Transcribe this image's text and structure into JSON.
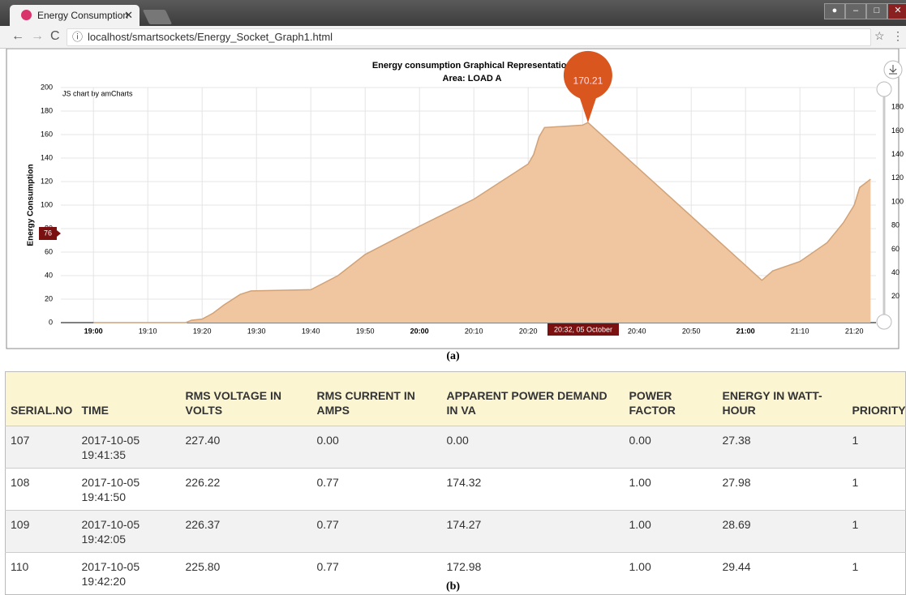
{
  "browser": {
    "tab_title": "Energy Consumption",
    "url": "localhost/smartsockets/Energy_Socket_Graph1.html"
  },
  "chart_data": {
    "type": "area",
    "title": "Energy consumption Graphical Representation",
    "subtitle": "Area: LOAD A",
    "y_label": "Energy Consumption",
    "credit": "JS chart by amCharts",
    "x": [
      "19:00",
      "19:17",
      "19:18",
      "19:20",
      "19:22",
      "19:24",
      "19:27",
      "19:29",
      "19:40",
      "19:45",
      "19:50",
      "20:00",
      "20:10",
      "20:20",
      "20:21",
      "20:22",
      "20:23",
      "20:30",
      "20:31",
      "21:03",
      "21:05",
      "21:10",
      "21:15",
      "21:18",
      "21:20",
      "21:21",
      "21:23"
    ],
    "values": [
      0,
      0,
      2,
      3,
      8,
      15,
      24,
      27,
      28,
      40,
      58,
      82,
      105,
      135,
      143,
      158,
      166,
      168,
      170.21,
      36,
      44,
      52,
      68,
      85,
      100,
      115,
      122
    ],
    "color": "#efc6a0",
    "line_color": "#d1a277",
    "xlim": [
      "18:54",
      "21:24"
    ],
    "xticks": [
      "19:00",
      "19:10",
      "19:20",
      "19:30",
      "19:40",
      "19:50",
      "20:00",
      "20:10",
      "20:20",
      "20:30",
      "20:40",
      "20:50",
      "21:00",
      "21:10",
      "21:20"
    ],
    "ylim": [
      0,
      200
    ],
    "yticks": [
      0,
      20,
      40,
      60,
      80,
      100,
      120,
      140,
      160,
      180,
      200
    ],
    "y2lim": [
      0,
      200
    ],
    "y2ticks": [
      20,
      40,
      60,
      80,
      100,
      120,
      140,
      160,
      180
    ],
    "grid": true,
    "balloon_label": "170.21",
    "cursor_y_label": "76",
    "cursor_x_label": "20:32, 05 October"
  },
  "captions": [
    "(a)",
    "(b)"
  ],
  "table": {
    "header": [
      "SERIAL.NO",
      "TIME",
      "RMS VOLTAGE IN VOLTS",
      "RMS CURRENT IN AMPS",
      "APPARENT POWER DEMAND IN VA",
      "POWER FACTOR",
      "ENERGY IN WATT-HOUR",
      "PRIORITY"
    ],
    "rows": [
      [
        "107",
        "2017-10-05 19:41:35",
        "227.40",
        "0.00",
        "0.00",
        "0.00",
        "27.38",
        "1"
      ],
      [
        "108",
        "2017-10-05 19:41:50",
        "226.22",
        "0.77",
        "174.32",
        "1.00",
        "27.98",
        "1"
      ],
      [
        "109",
        "2017-10-05 19:42:05",
        "226.37",
        "0.77",
        "174.27",
        "1.00",
        "28.69",
        "1"
      ],
      [
        "110",
        "2017-10-05 19:42:20",
        "225.80",
        "0.77",
        "172.98",
        "1.00",
        "29.44",
        "1"
      ]
    ]
  }
}
